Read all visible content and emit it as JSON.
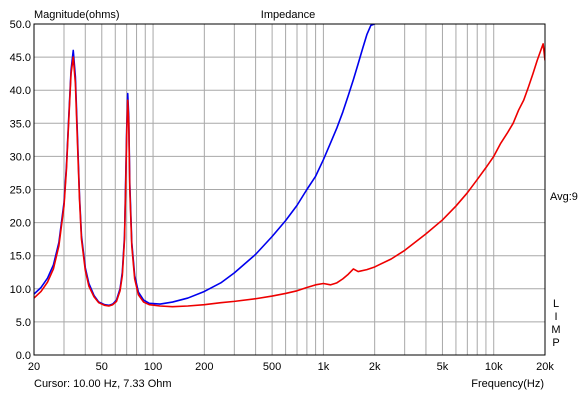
{
  "window": {
    "ylabel_top": "Magnitude(ohms)",
    "title": "Impedance",
    "cursor_readout": "Cursor: 10.00 Hz, 7.33 Ohm",
    "xlabel": "Frequency(Hz)",
    "avg_label": "Avg:9",
    "side_letters": [
      "L",
      "I",
      "M",
      "P"
    ]
  },
  "colors": {
    "plot_background": "#ffffff",
    "grid": "#a8a8a8",
    "frame": "#000000",
    "series_blue": "#0000ee",
    "series_red": "#ee0000"
  },
  "chart_data": {
    "type": "line",
    "title": "Impedance",
    "xlabel": "Frequency(Hz)",
    "ylabel": "Magnitude(ohms)",
    "x_scale": "log",
    "xlim": [
      20,
      20000
    ],
    "ylim": [
      0,
      50
    ],
    "grid": true,
    "x_ticks": [
      20,
      50,
      100,
      200,
      500,
      1000,
      2000,
      5000,
      10000,
      20000
    ],
    "x_tick_labels": [
      "20",
      "50",
      "100",
      "200",
      "500",
      "1k",
      "2k",
      "5k",
      "10k",
      "20k"
    ],
    "y_ticks": [
      0,
      5,
      10,
      15,
      20,
      25,
      30,
      35,
      40,
      45,
      50
    ],
    "y_tick_labels": [
      "0.0",
      "5.0",
      "10.0",
      "15.0",
      "20.0",
      "25.0",
      "30.0",
      "35.0",
      "40.0",
      "45.0",
      "50.0"
    ],
    "series": [
      {
        "color": "#0000ee",
        "points": [
          [
            20,
            9.2
          ],
          [
            22,
            10.2
          ],
          [
            24,
            11.6
          ],
          [
            26,
            13.6
          ],
          [
            28,
            17.0
          ],
          [
            30,
            23.0
          ],
          [
            31,
            28.5
          ],
          [
            32,
            36.0
          ],
          [
            33,
            43.0
          ],
          [
            34,
            46.0
          ],
          [
            35,
            42.0
          ],
          [
            36,
            33.0
          ],
          [
            37,
            24.0
          ],
          [
            38,
            18.0
          ],
          [
            40,
            13.2
          ],
          [
            42,
            10.8
          ],
          [
            45,
            9.0
          ],
          [
            48,
            8.0
          ],
          [
            52,
            7.6
          ],
          [
            55,
            7.5
          ],
          [
            58,
            7.7
          ],
          [
            61,
            8.3
          ],
          [
            64,
            10.0
          ],
          [
            66,
            12.5
          ],
          [
            68,
            18.0
          ],
          [
            69,
            26.0
          ],
          [
            70,
            34.0
          ],
          [
            71,
            39.5
          ],
          [
            72,
            36.0
          ],
          [
            73,
            26.0
          ],
          [
            75,
            17.0
          ],
          [
            78,
            12.0
          ],
          [
            82,
            9.5
          ],
          [
            88,
            8.3
          ],
          [
            95,
            7.8
          ],
          [
            110,
            7.7
          ],
          [
            130,
            8.0
          ],
          [
            160,
            8.6
          ],
          [
            200,
            9.6
          ],
          [
            250,
            10.9
          ],
          [
            300,
            12.4
          ],
          [
            400,
            15.2
          ],
          [
            500,
            17.9
          ],
          [
            600,
            20.3
          ],
          [
            700,
            22.6
          ],
          [
            800,
            25.0
          ],
          [
            900,
            27.0
          ],
          [
            1000,
            29.5
          ],
          [
            1100,
            32.0
          ],
          [
            1200,
            34.3
          ],
          [
            1300,
            36.7
          ],
          [
            1400,
            39.2
          ],
          [
            1500,
            41.6
          ],
          [
            1600,
            44.0
          ],
          [
            1700,
            46.3
          ],
          [
            1800,
            48.4
          ],
          [
            1900,
            49.8
          ],
          [
            2000,
            50.0
          ]
        ]
      },
      {
        "color": "#ee0000",
        "points": [
          [
            20,
            8.6
          ],
          [
            22,
            9.6
          ],
          [
            24,
            11.0
          ],
          [
            26,
            13.0
          ],
          [
            28,
            16.5
          ],
          [
            30,
            22.5
          ],
          [
            31,
            28.0
          ],
          [
            32,
            35.5
          ],
          [
            33,
            42.5
          ],
          [
            34,
            45.0
          ],
          [
            35,
            41.0
          ],
          [
            36,
            32.0
          ],
          [
            37,
            23.5
          ],
          [
            38,
            17.5
          ],
          [
            40,
            12.8
          ],
          [
            42,
            10.4
          ],
          [
            45,
            8.8
          ],
          [
            48,
            7.9
          ],
          [
            52,
            7.5
          ],
          [
            55,
            7.4
          ],
          [
            58,
            7.6
          ],
          [
            61,
            8.1
          ],
          [
            64,
            9.7
          ],
          [
            66,
            12.0
          ],
          [
            68,
            17.5
          ],
          [
            69,
            25.0
          ],
          [
            70,
            33.0
          ],
          [
            71,
            38.5
          ],
          [
            72,
            35.0
          ],
          [
            73,
            25.0
          ],
          [
            75,
            16.5
          ],
          [
            78,
            11.5
          ],
          [
            82,
            9.1
          ],
          [
            88,
            8.0
          ],
          [
            95,
            7.6
          ],
          [
            110,
            7.4
          ],
          [
            130,
            7.3
          ],
          [
            160,
            7.4
          ],
          [
            200,
            7.6
          ],
          [
            250,
            7.9
          ],
          [
            300,
            8.1
          ],
          [
            400,
            8.5
          ],
          [
            500,
            8.9
          ],
          [
            600,
            9.3
          ],
          [
            700,
            9.7
          ],
          [
            800,
            10.2
          ],
          [
            900,
            10.6
          ],
          [
            1000,
            10.8
          ],
          [
            1100,
            10.6
          ],
          [
            1200,
            10.9
          ],
          [
            1300,
            11.5
          ],
          [
            1400,
            12.2
          ],
          [
            1500,
            13.0
          ],
          [
            1600,
            12.6
          ],
          [
            1800,
            12.9
          ],
          [
            2000,
            13.3
          ],
          [
            2500,
            14.5
          ],
          [
            3000,
            15.8
          ],
          [
            4000,
            18.3
          ],
          [
            5000,
            20.4
          ],
          [
            6000,
            22.5
          ],
          [
            7000,
            24.5
          ],
          [
            8000,
            26.5
          ],
          [
            9000,
            28.3
          ],
          [
            10000,
            30.0
          ],
          [
            11000,
            32.0
          ],
          [
            12000,
            33.5
          ],
          [
            13000,
            35.0
          ],
          [
            14000,
            37.0
          ],
          [
            15000,
            38.5
          ],
          [
            16000,
            40.5
          ],
          [
            17000,
            42.5
          ],
          [
            18000,
            44.5
          ],
          [
            19000,
            46.2
          ],
          [
            19500,
            47.0
          ],
          [
            20000,
            44.5
          ]
        ]
      }
    ]
  }
}
